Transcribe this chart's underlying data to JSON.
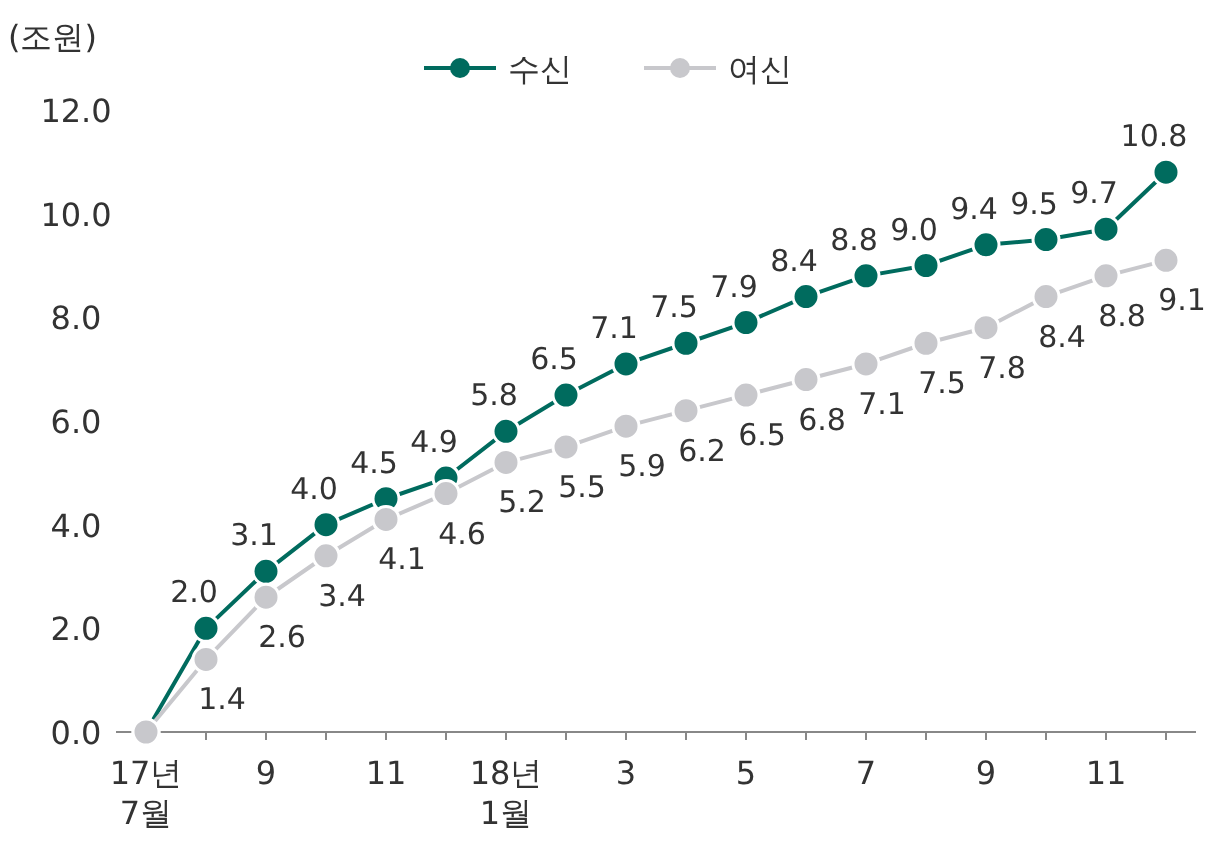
{
  "chart_data": {
    "type": "line",
    "ylabel": "(조원)",
    "categories": [
      "17년\n7월",
      null,
      "9",
      null,
      "11",
      null,
      "18년\n1월",
      null,
      "3",
      null,
      "5",
      null,
      "7",
      null,
      "9",
      null,
      "11",
      null
    ],
    "series": [
      {
        "name": "수신",
        "color": "#006b5e",
        "values": [
          0,
          2.0,
          3.1,
          4.0,
          4.5,
          4.9,
          5.8,
          6.5,
          7.1,
          7.5,
          7.9,
          8.4,
          8.8,
          9.0,
          9.4,
          9.5,
          9.7,
          10.8
        ],
        "value_labels": [
          null,
          "2.0",
          "3.1",
          "4.0",
          "4.5",
          "4.9",
          "5.8",
          "6.5",
          "7.1",
          "7.5",
          "7.9",
          "8.4",
          "8.8",
          "9.0",
          "9.4",
          "9.5",
          "9.7",
          "10.8"
        ]
      },
      {
        "name": "여신",
        "color": "#c8c8cc",
        "values": [
          0,
          1.4,
          2.6,
          3.4,
          4.1,
          4.6,
          5.2,
          5.5,
          5.9,
          6.2,
          6.5,
          6.8,
          7.1,
          7.5,
          7.8,
          8.4,
          8.8,
          9.1
        ],
        "value_labels": [
          null,
          "1.4",
          "2.6",
          "3.4",
          "4.1",
          "4.6",
          "5.2",
          "5.5",
          "5.9",
          "6.2",
          "6.5",
          "6.8",
          "7.1",
          "7.5",
          "7.8",
          "8.4",
          "8.8",
          "9.1"
        ]
      }
    ],
    "ylim": [
      0,
      12
    ],
    "yticks": [
      {
        "value": 0,
        "label": "0.0"
      },
      {
        "value": 2,
        "label": "2.0"
      },
      {
        "value": 4,
        "label": "4.0"
      },
      {
        "value": 6,
        "label": "6.0"
      },
      {
        "value": 8,
        "label": "8.0"
      },
      {
        "value": 10,
        "label": "10.0"
      },
      {
        "value": 12,
        "label": "12.0"
      }
    ],
    "grid": false,
    "legend": "top",
    "marker": "circle",
    "line_style": "solid"
  }
}
